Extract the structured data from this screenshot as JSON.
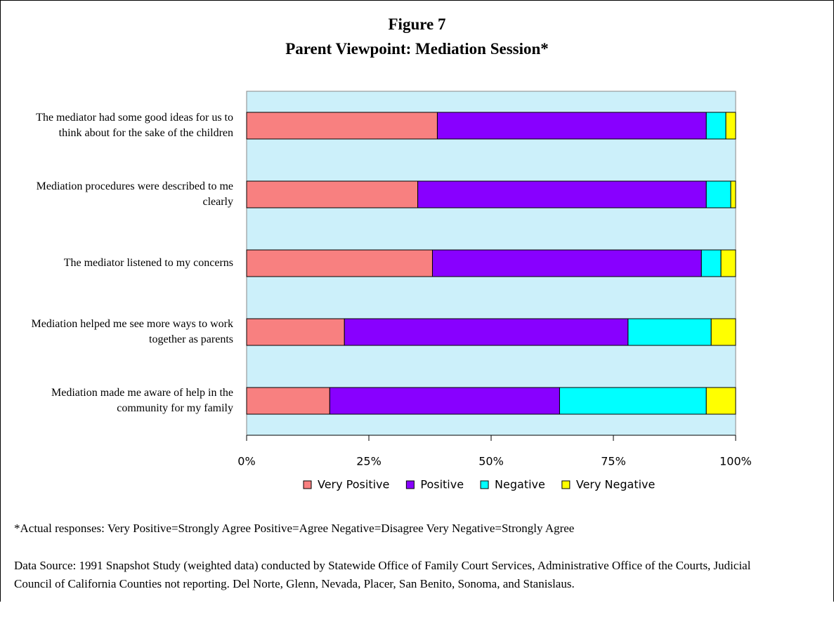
{
  "chart_data": {
    "type": "stacked_barh",
    "title": "Figure 7",
    "subtitle": "Parent Viewpoint:  Mediation Session*",
    "categories": [
      "The mediator  had some good ideas for  us to think about for the sake of the children",
      "Mediation procedures were described to me clearly",
      "The mediator listened to my concerns",
      "Mediation helped me see more ways to work together as parents",
      "Mediation made me aware of help in the community for my family"
    ],
    "series": [
      {
        "name": "Very Positive",
        "color": "#f88080",
        "values": [
          39,
          35,
          38,
          20,
          17
        ]
      },
      {
        "name": "Positive",
        "color": "#8800ff",
        "values": [
          55,
          59,
          55,
          58,
          47
        ]
      },
      {
        "name": "Negative",
        "color": "#00ffff",
        "values": [
          4,
          5,
          4,
          17,
          30
        ]
      },
      {
        "name": "Very Negative",
        "color": "#ffff00",
        "values": [
          2,
          1,
          3,
          5,
          6
        ]
      }
    ],
    "xlim": [
      0,
      100
    ],
    "xticks": [
      {
        "value": 0,
        "label": "0%"
      },
      {
        "value": 25,
        "label": "25%"
      },
      {
        "value": 50,
        "label": "50%"
      },
      {
        "value": 75,
        "label": "75%"
      },
      {
        "value": 100,
        "label": "100%"
      }
    ],
    "background": "#ccf0fa",
    "legend": "bottom",
    "notes": [
      "*Actual responses: Very Positive=Strongly Agree Positive=Agree Negative=Disagree Very Negative=Strongly Agree",
      "Data Source: 1991 Snapshot Study (weighted data) conducted by Statewide Office of Family Court Services, Administrative Office of the Courts, Judicial Council of California  Counties not reporting. Del Norte, Glenn, Nevada, Placer, San Benito, Sonoma, and Stanislaus."
    ]
  }
}
